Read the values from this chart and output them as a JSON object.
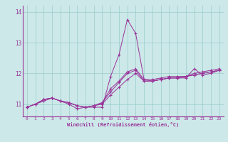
{
  "x_values": [
    0,
    1,
    2,
    3,
    4,
    5,
    6,
    7,
    8,
    9,
    10,
    11,
    12,
    13,
    14,
    15,
    16,
    17,
    18,
    19,
    20,
    21,
    22,
    23
  ],
  "line1": [
    10.9,
    11.0,
    11.1,
    11.2,
    11.1,
    11.0,
    10.85,
    10.9,
    10.9,
    10.9,
    11.9,
    12.6,
    13.75,
    13.3,
    11.8,
    11.75,
    11.8,
    11.85,
    11.85,
    11.85,
    12.15,
    11.95,
    12.0,
    12.1
  ],
  "line2": [
    10.9,
    11.0,
    11.15,
    11.2,
    11.1,
    11.05,
    10.95,
    10.9,
    10.95,
    11.0,
    11.3,
    11.55,
    11.8,
    12.0,
    11.75,
    11.75,
    11.8,
    11.85,
    11.85,
    11.9,
    11.95,
    12.0,
    12.05,
    12.1
  ],
  "line3": [
    10.9,
    11.0,
    11.15,
    11.2,
    11.1,
    11.05,
    10.95,
    10.9,
    10.95,
    11.05,
    11.4,
    11.7,
    12.0,
    12.1,
    11.75,
    11.75,
    11.8,
    11.85,
    11.85,
    11.9,
    11.95,
    12.0,
    12.05,
    12.1
  ],
  "line4": [
    10.9,
    11.0,
    11.15,
    11.2,
    11.1,
    11.05,
    10.95,
    10.9,
    10.95,
    11.05,
    11.5,
    11.75,
    12.05,
    12.15,
    11.8,
    11.8,
    11.85,
    11.9,
    11.9,
    11.9,
    12.0,
    12.05,
    12.1,
    12.15
  ],
  "line_color": "#993399",
  "bg_color": "#cce8e8",
  "grid_color": "#99cccc",
  "xlabel": "Windchill (Refroidissement éolien,°C)",
  "ylim": [
    10.6,
    14.2
  ],
  "xlim": [
    -0.5,
    23.5
  ],
  "yticks": [
    11,
    12,
    13,
    14
  ],
  "xticks": [
    0,
    1,
    2,
    3,
    4,
    5,
    6,
    7,
    8,
    9,
    10,
    11,
    12,
    13,
    14,
    15,
    16,
    17,
    18,
    19,
    20,
    21,
    22,
    23
  ]
}
